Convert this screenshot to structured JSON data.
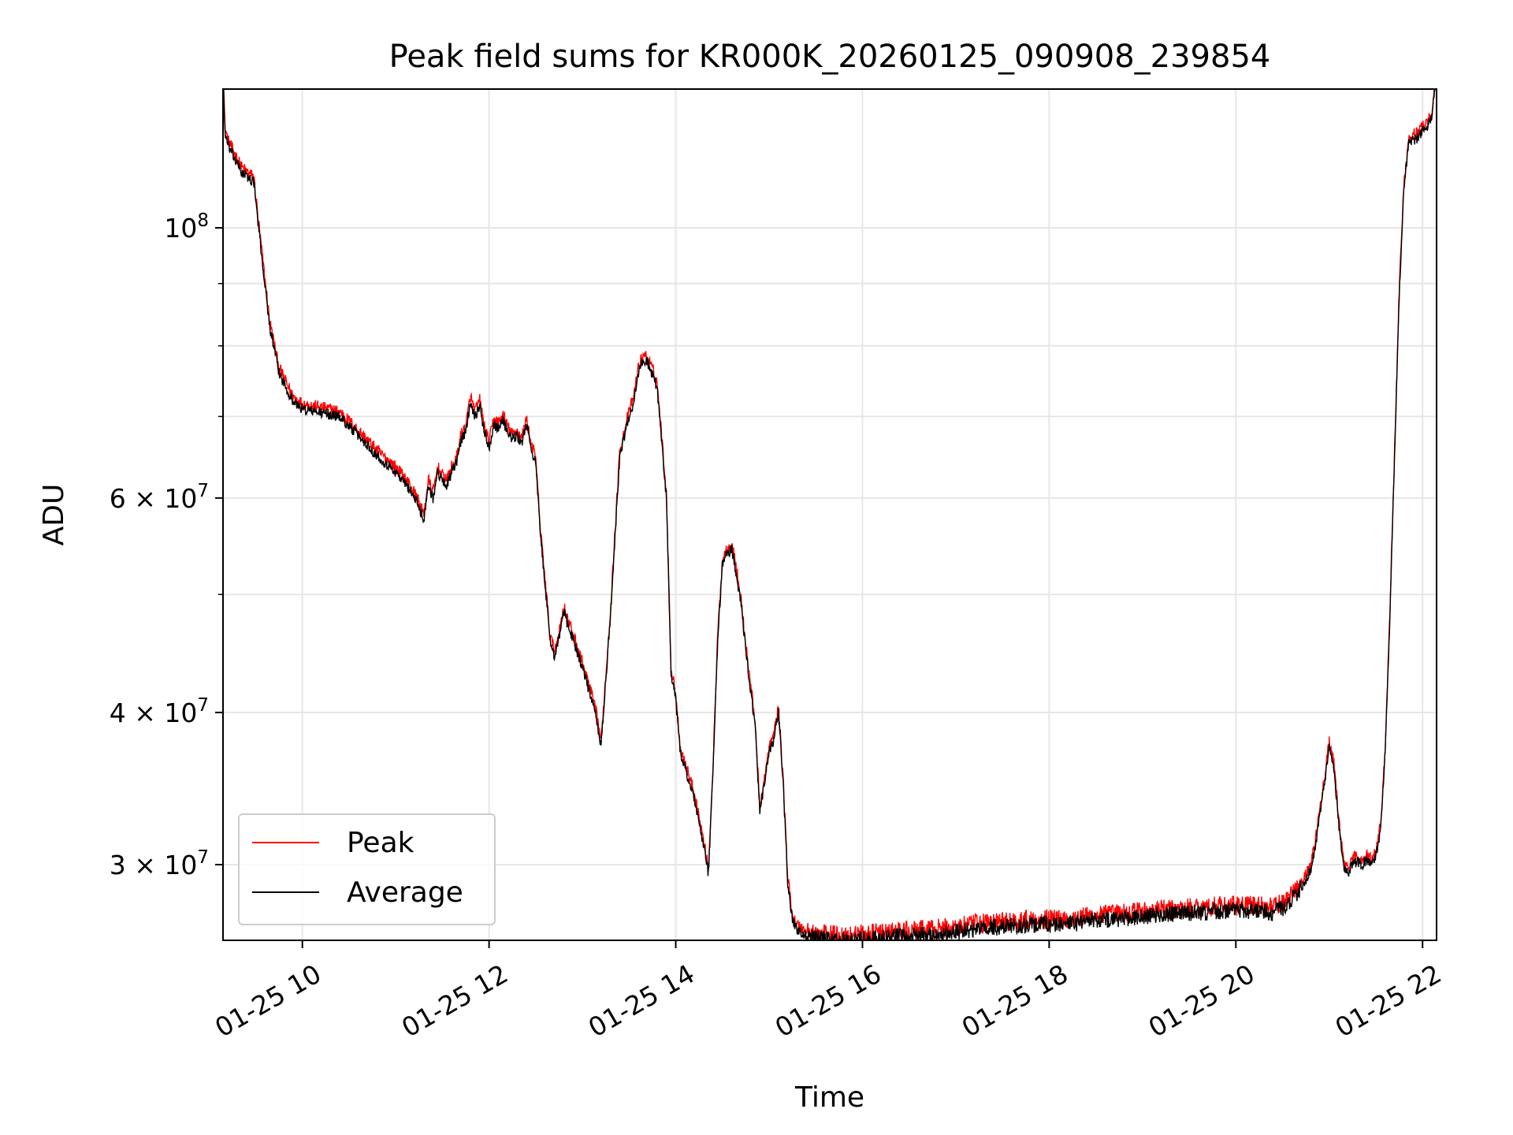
{
  "chart_data": {
    "type": "line",
    "title": "Peak field sums for KR000K_20260125_090908_239854",
    "xlabel": "Time",
    "ylabel": "ADU",
    "y_scale": "log",
    "xlim_hours": [
      9.15,
      22.15
    ],
    "ylim": [
      26000000,
      130000000
    ],
    "grid": true,
    "legend_position": "lower-left",
    "x_ticks": [
      {
        "hour": 10,
        "label": "01-25 10"
      },
      {
        "hour": 12,
        "label": "01-25 12"
      },
      {
        "hour": 14,
        "label": "01-25 14"
      },
      {
        "hour": 16,
        "label": "01-25 16"
      },
      {
        "hour": 18,
        "label": "01-25 18"
      },
      {
        "hour": 20,
        "label": "01-25 20"
      },
      {
        "hour": 22,
        "label": "01-25 22"
      }
    ],
    "y_ticks": [
      {
        "value": 100000000,
        "mantissa": "",
        "exponent": "8"
      },
      {
        "value": 60000000,
        "mantissa": "6",
        "exponent": "7"
      },
      {
        "value": 40000000,
        "mantissa": "4",
        "exponent": "7"
      },
      {
        "value": 30000000,
        "mantissa": "3",
        "exponent": "7"
      }
    ],
    "y_minor_ticks": [
      90000000,
      80000000,
      70000000,
      50000000
    ],
    "series": [
      {
        "name": "Peak",
        "color": "#ff0000",
        "noise": 0.012,
        "offset": 1.01
      },
      {
        "name": "Average",
        "color": "#000000",
        "noise": 0.01,
        "offset": 1.0
      }
    ],
    "x": [
      9.15,
      9.17,
      9.2,
      9.35,
      9.48,
      9.55,
      9.65,
      9.75,
      9.9,
      10.0,
      10.2,
      10.4,
      10.6,
      10.8,
      11.0,
      11.15,
      11.25,
      11.3,
      11.35,
      11.4,
      11.45,
      11.5,
      11.55,
      11.6,
      11.65,
      11.7,
      11.75,
      11.8,
      11.85,
      11.9,
      11.95,
      12.0,
      12.05,
      12.1,
      12.15,
      12.2,
      12.25,
      12.3,
      12.35,
      12.4,
      12.45,
      12.5,
      12.55,
      12.6,
      12.65,
      12.7,
      12.75,
      12.8,
      12.85,
      12.9,
      13.0,
      13.1,
      13.15,
      13.2,
      13.3,
      13.4,
      13.5,
      13.55,
      13.6,
      13.65,
      13.7,
      13.8,
      13.9,
      13.95,
      14.0,
      14.05,
      14.1,
      14.2,
      14.3,
      14.35,
      14.4,
      14.45,
      14.5,
      14.55,
      14.6,
      14.65,
      14.7,
      14.75,
      14.85,
      14.9,
      14.95,
      15.0,
      15.05,
      15.1,
      15.15,
      15.2,
      15.25,
      15.3,
      15.4,
      15.5,
      15.7,
      15.9,
      16.2,
      16.5,
      16.8,
      17.0,
      17.3,
      17.6,
      17.9,
      18.2,
      18.5,
      18.8,
      19.0,
      19.3,
      19.6,
      19.9,
      20.2,
      20.4,
      20.5,
      20.6,
      20.7,
      20.8,
      20.85,
      20.9,
      20.95,
      21.0,
      21.05,
      21.1,
      21.15,
      21.2,
      21.25,
      21.3,
      21.35,
      21.4,
      21.45,
      21.5,
      21.55,
      21.6,
      21.65,
      21.7,
      21.75,
      21.8,
      21.85,
      21.9,
      21.95,
      22.0,
      22.05,
      22.1,
      22.13
    ],
    "values": [
      135000000,
      120000000,
      117000000,
      111000000,
      109000000,
      97000000,
      83000000,
      76000000,
      72000000,
      71000000,
      70500000,
      70000000,
      67500000,
      65000000,
      63000000,
      61000000,
      59000000,
      57500000,
      61500000,
      60000000,
      63000000,
      62000000,
      61500000,
      63000000,
      64000000,
      67000000,
      68000000,
      72000000,
      70000000,
      71500000,
      68000000,
      66000000,
      69000000,
      68500000,
      69500000,
      68000000,
      67000000,
      67500000,
      66500000,
      69000000,
      66000000,
      64000000,
      56000000,
      51000000,
      46000000,
      44500000,
      46000000,
      48500000,
      47000000,
      46000000,
      43500000,
      41000000,
      39500000,
      37500000,
      48000000,
      65000000,
      70000000,
      72000000,
      76000000,
      78000000,
      77500000,
      74000000,
      60000000,
      43000000,
      41000000,
      37000000,
      36000000,
      34000000,
      31000000,
      29500000,
      36000000,
      46000000,
      53000000,
      54000000,
      54500000,
      52000000,
      49000000,
      45000000,
      39000000,
      33000000,
      35000000,
      37000000,
      38000000,
      40000000,
      35000000,
      29000000,
      27000000,
      26500000,
      26200000,
      26100000,
      26000000,
      26000000,
      26100000,
      26200000,
      26300000,
      26400000,
      26600000,
      26700000,
      26800000,
      26800000,
      27000000,
      27100000,
      27200000,
      27300000,
      27400000,
      27500000,
      27500000,
      27400000,
      27600000,
      28100000,
      28700000,
      29700000,
      31000000,
      33000000,
      35000000,
      37500000,
      36000000,
      32500000,
      30000000,
      29500000,
      30000000,
      30200000,
      30000000,
      30200000,
      30000000,
      30500000,
      32000000,
      37000000,
      48000000,
      65000000,
      88000000,
      108000000,
      117000000,
      118000000,
      118500000,
      120000000,
      121000000,
      123000000,
      130000000
    ]
  }
}
